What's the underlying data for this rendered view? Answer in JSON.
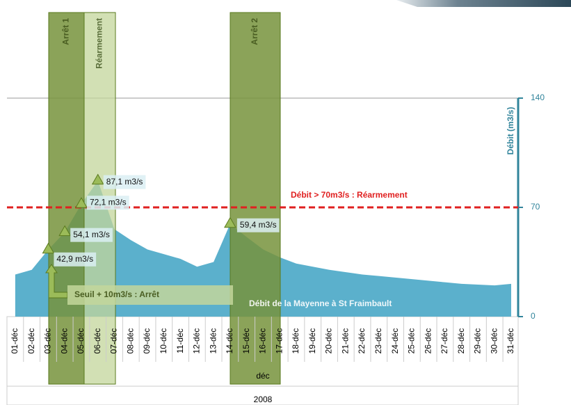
{
  "chart_data": {
    "type": "area",
    "x_title": "déc",
    "x_group": "2008",
    "y_title": "Débit (m3/s)",
    "categories": [
      "01-déc",
      "02-déc",
      "03-déc",
      "04-déc",
      "05-déc",
      "06-déc",
      "07-déc",
      "08-déc",
      "09-déc",
      "10-déc",
      "11-déc",
      "12-déc",
      "13-déc",
      "14-déc",
      "15-déc",
      "16-déc",
      "17-déc",
      "18-déc",
      "19-déc",
      "20-déc",
      "21-déc",
      "22-déc",
      "23-déc",
      "24-déc",
      "25-déc",
      "26-déc",
      "27-déc",
      "28-déc",
      "29-déc",
      "30-déc",
      "31-déc"
    ],
    "series": [
      {
        "name": "Débit de la Mayenne à St Fraimbault",
        "color": "#5bb0cc",
        "values": [
          27,
          30,
          42.9,
          54.1,
          72.1,
          87.1,
          56,
          49,
          43,
          40,
          37,
          32,
          35,
          59.4,
          51,
          43,
          38,
          34,
          32,
          30,
          28.5,
          27,
          26,
          25,
          24,
          23,
          22,
          21,
          20.5,
          20,
          21
        ],
        "value_labels": [
          null,
          null,
          "42,9 m3/s",
          "54,1 m3/s",
          "72,1 m3/s",
          "87,1 m3/s",
          null,
          null,
          null,
          null,
          null,
          null,
          null,
          "59,4 m3/s",
          null,
          null,
          null,
          null,
          null,
          null,
          null,
          null,
          null,
          null,
          null,
          null,
          null,
          null,
          null,
          null,
          null
        ]
      }
    ],
    "ylim": [
      0,
      140
    ],
    "yticks": [
      0,
      70,
      140
    ],
    "bands": [
      {
        "label": "Arrêt 1"
      },
      {
        "label": "Réarmement"
      },
      {
        "label": "Arrêt 2"
      }
    ],
    "threshold": {
      "value": 70,
      "label": "Débit > 70m3/s : Réarmement",
      "color": "#e02020"
    },
    "note": "Seuil + 10m3/s : Arrêt"
  }
}
